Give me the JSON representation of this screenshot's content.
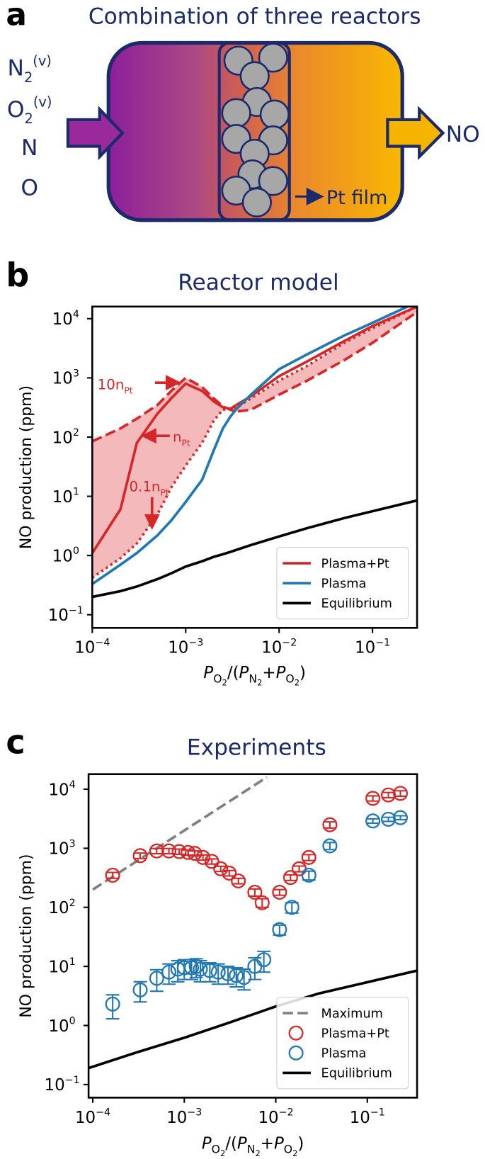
{
  "diagram": {
    "label": "a",
    "title": "Combination of three reactors",
    "inputs": [
      {
        "base": "N",
        "sub": "2",
        "sup": "(v)"
      },
      {
        "base": "O",
        "sub": "2",
        "sup": "(v)"
      },
      {
        "base": "N"
      },
      {
        "base": "O"
      }
    ],
    "output": "NO",
    "film": "Pt film"
  },
  "chart_data": [
    {
      "type": "line",
      "label": "b",
      "title": "Reactor model",
      "ylabel": "NO production (ppm)",
      "xlabel": [
        {
          "text": "P",
          "level": 0,
          "italic": true
        },
        {
          "text": "O",
          "level": 1
        },
        {
          "text": "2",
          "level": 2
        },
        {
          "text": "/(",
          "level": 0
        },
        {
          "text": "P",
          "level": 0,
          "italic": true
        },
        {
          "text": "N",
          "level": 1
        },
        {
          "text": "2",
          "level": 2
        },
        {
          "text": "+",
          "level": 0
        },
        {
          "text": "P",
          "level": 0,
          "italic": true
        },
        {
          "text": "O",
          "level": 1
        },
        {
          "text": "2",
          "level": 2
        },
        {
          "text": ")",
          "level": 0
        }
      ],
      "log_x": true,
      "log_y": true,
      "legend": "lower right",
      "fill_between": [
        1,
        2
      ],
      "fill_color": "#f4b9ba",
      "xlim": [
        0.0001,
        0.3
      ],
      "ylim": [
        0.06,
        16000
      ],
      "xticks": [
        {
          "value": 0.0001,
          "label": {
            "base": "10",
            "sup": "−4"
          }
        },
        {
          "value": 0.001,
          "label": {
            "base": "10",
            "sup": "−3"
          }
        },
        {
          "value": 0.01,
          "label": {
            "base": "10",
            "sup": "−2"
          }
        },
        {
          "value": 0.1,
          "label": {
            "base": "10",
            "sup": "−1"
          }
        }
      ],
      "yticks": [
        {
          "value": 0.1,
          "label": {
            "base": "10",
            "sup": "−1"
          }
        },
        {
          "value": 1,
          "label": {
            "base": "10",
            "sup": "0"
          }
        },
        {
          "value": 10,
          "label": {
            "base": "10",
            "sup": "1"
          }
        },
        {
          "value": 100,
          "label": {
            "base": "10",
            "sup": "2"
          }
        },
        {
          "value": 1000,
          "label": {
            "base": "10",
            "sup": "3"
          }
        },
        {
          "value": 10000,
          "label": {
            "base": "10",
            "sup": "4"
          }
        }
      ],
      "x": [
        0.0001,
        0.0002,
        0.0003,
        0.0005,
        0.0007,
        0.001,
        0.0015,
        0.002,
        0.0025,
        0.003,
        0.0035,
        0.005,
        0.01,
        0.02,
        0.05,
        0.1,
        0.3
      ],
      "series": [
        {
          "name": "Plasma+Pt",
          "color": "#d62728",
          "style": "solid",
          "values": [
            1.1,
            6,
            80,
            250,
            450,
            800,
            600,
            400,
            320,
            300,
            350,
            490,
            1070,
            1900,
            4200,
            7500,
            16000
          ]
        },
        {
          "color": "#d62728",
          "style": "dashed",
          "values": [
            85,
            140,
            205,
            350,
            600,
            1000,
            700,
            450,
            330,
            290,
            270,
            290,
            520,
            900,
            2000,
            3900,
            13000
          ]
        },
        {
          "color": "#d62728",
          "style": "dotted",
          "values": [
            0.42,
            0.9,
            1.6,
            5,
            14,
            33,
            80,
            190,
            290,
            300,
            320,
            450,
            900,
            1600,
            3900,
            6900,
            16000
          ]
        },
        {
          "name": "Plasma",
          "color": "#1f77b4",
          "style": "solid",
          "values": [
            0.33,
            0.7,
            1.1,
            2.2,
            3.9,
            8,
            19,
            60,
            140,
            220,
            300,
            520,
            1400,
            2500,
            5200,
            8500,
            19000
          ]
        },
        {
          "name": "Equilibrium",
          "color": "#000000",
          "style": "solid",
          "values": [
            0.2,
            0.25,
            0.3,
            0.4,
            0.5,
            0.65,
            0.8,
            0.95,
            1.05,
            1.15,
            1.25,
            1.5,
            2.1,
            2.9,
            4.3,
            5.6,
            8.5
          ]
        }
      ],
      "annotations": [
        {
          "base": "10n",
          "sub": "Pt"
        },
        {
          "base": "n",
          "sub": "Pt"
        },
        {
          "base": "0.1n",
          "sub": "Pt"
        }
      ]
    },
    {
      "type": "scatter",
      "label": "c",
      "title": "Experiments",
      "ylabel": "NO production (ppm)",
      "xlabel": [
        {
          "text": "P",
          "level": 0,
          "italic": true
        },
        {
          "text": "O",
          "level": 1
        },
        {
          "text": "2",
          "level": 2
        },
        {
          "text": "/(",
          "level": 0
        },
        {
          "text": "P",
          "level": 0,
          "italic": true
        },
        {
          "text": "N",
          "level": 1
        },
        {
          "text": "2",
          "level": 2
        },
        {
          "text": "+",
          "level": 0
        },
        {
          "text": "P",
          "level": 0,
          "italic": true
        },
        {
          "text": "O",
          "level": 1
        },
        {
          "text": "2",
          "level": 2
        },
        {
          "text": ")",
          "level": 0
        }
      ],
      "log_x": true,
      "log_y": true,
      "legend": "lower right",
      "xlim": [
        9e-05,
        0.35
      ],
      "ylim": [
        0.06,
        18000
      ],
      "xticks": [
        {
          "value": 0.0001,
          "label": {
            "base": "10",
            "sup": "−4"
          }
        },
        {
          "value": 0.001,
          "label": {
            "base": "10",
            "sup": "−3"
          }
        },
        {
          "value": 0.01,
          "label": {
            "base": "10",
            "sup": "−2"
          }
        },
        {
          "value": 0.1,
          "label": {
            "base": "10",
            "sup": "−1"
          }
        }
      ],
      "yticks": [
        {
          "value": 0.1,
          "label": {
            "base": "10",
            "sup": "−1"
          }
        },
        {
          "value": 1,
          "label": {
            "base": "10",
            "sup": "0"
          }
        },
        {
          "value": 10,
          "label": {
            "base": "10",
            "sup": "1"
          }
        },
        {
          "value": 100,
          "label": {
            "base": "10",
            "sup": "2"
          }
        },
        {
          "value": 1000,
          "label": {
            "base": "10",
            "sup": "3"
          }
        },
        {
          "value": 10000,
          "label": {
            "base": "10",
            "sup": "4"
          }
        }
      ],
      "series": [
        {
          "name": "Maximum",
          "color": "#808080",
          "style": "dashed",
          "x": [
            0.0001,
            0.001,
            0.008
          ],
          "values": [
            200,
            2000,
            16000
          ]
        },
        {
          "name": "Plasma+Pt",
          "color": "#d62728",
          "marker": "o",
          "x": [
            0.000165,
            0.00033,
            0.0005,
            0.00068,
            0.00088,
            0.0011,
            0.0013,
            0.0016,
            0.002,
            0.0025,
            0.0031,
            0.0039,
            0.0059,
            0.0071,
            0.011,
            0.0145,
            0.018,
            0.023,
            0.039,
            0.115,
            0.17,
            0.23
          ],
          "values": [
            350,
            750,
            900,
            900,
            880,
            850,
            820,
            700,
            600,
            450,
            380,
            280,
            180,
            120,
            180,
            320,
            450,
            700,
            2500,
            7000,
            8000,
            8500
          ],
          "errors": [
            40,
            80,
            90,
            90,
            90,
            85,
            80,
            70,
            60,
            45,
            40,
            30,
            25,
            20,
            20,
            35,
            50,
            80,
            300,
            700,
            800,
            900
          ]
        },
        {
          "name": "Plasma",
          "color": "#1f77b4",
          "marker": "o",
          "x": [
            0.000165,
            0.00033,
            0.0005,
            0.00068,
            0.00085,
            0.001,
            0.0012,
            0.00135,
            0.0015,
            0.0019,
            0.00235,
            0.003,
            0.0037,
            0.0045,
            0.0059,
            0.0074,
            0.011,
            0.015,
            0.023,
            0.039,
            0.115,
            0.17,
            0.23
          ],
          "values": [
            2.3,
            4.0,
            6.3,
            8,
            9,
            9.5,
            9.5,
            10,
            9,
            8.5,
            8,
            7.5,
            7,
            6.5,
            10,
            13,
            42,
            100,
            350,
            1100,
            2900,
            3100,
            3300
          ],
          "errors": [
            1.0,
            1.5,
            2.5,
            3,
            3.5,
            3.5,
            3.5,
            3.5,
            3.5,
            3,
            3,
            2.5,
            2.5,
            2.5,
            4,
            5,
            8,
            20,
            60,
            150,
            250,
            250,
            250
          ]
        },
        {
          "name": "Equilibrium",
          "color": "#000000",
          "style": "solid",
          "x": [
            9e-05,
            0.0003,
            0.001,
            0.003,
            0.01,
            0.03,
            0.1,
            0.35
          ],
          "values": [
            0.19,
            0.35,
            0.62,
            1.1,
            2.1,
            3.5,
            5.4,
            8.5
          ]
        }
      ]
    }
  ]
}
